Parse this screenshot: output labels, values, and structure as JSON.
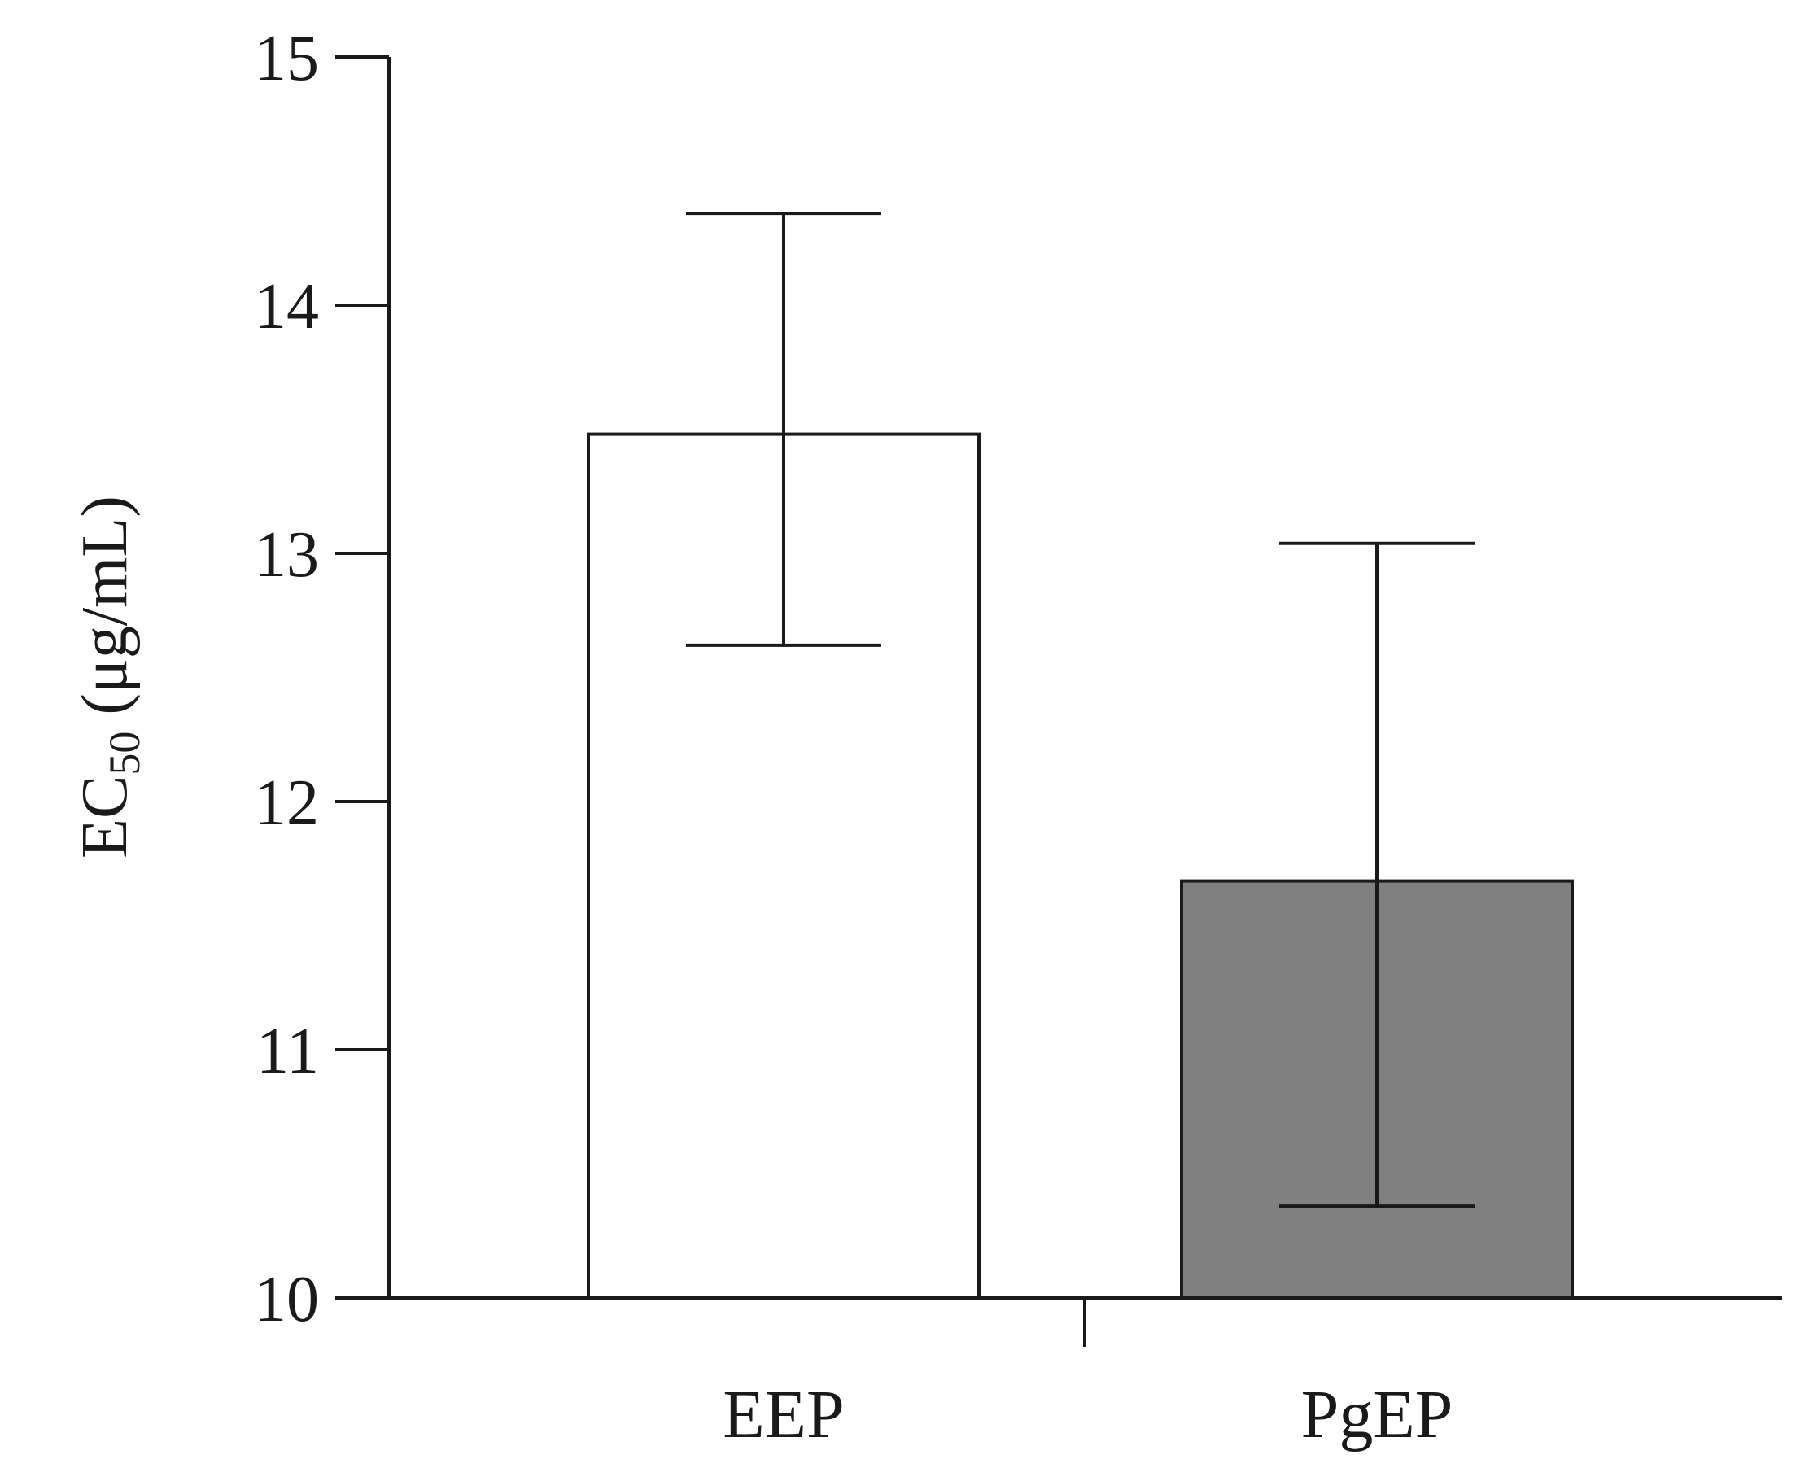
{
  "chart_data": {
    "type": "bar",
    "title": "",
    "xlabel": "",
    "ylabel": {
      "main": "EC",
      "sub": "50",
      "unit": " (μg/mL)"
    },
    "ylim": [
      10,
      15
    ],
    "yticks": [
      10,
      11,
      12,
      13,
      14,
      15
    ],
    "grid": false,
    "categories": [
      "EEP",
      "PgEP"
    ],
    "values": [
      13.48,
      11.68
    ],
    "error_low": [
      12.63,
      10.37
    ],
    "error_high": [
      14.37,
      13.04
    ],
    "bar_colors": [
      "#ffffff",
      "#808080"
    ]
  }
}
